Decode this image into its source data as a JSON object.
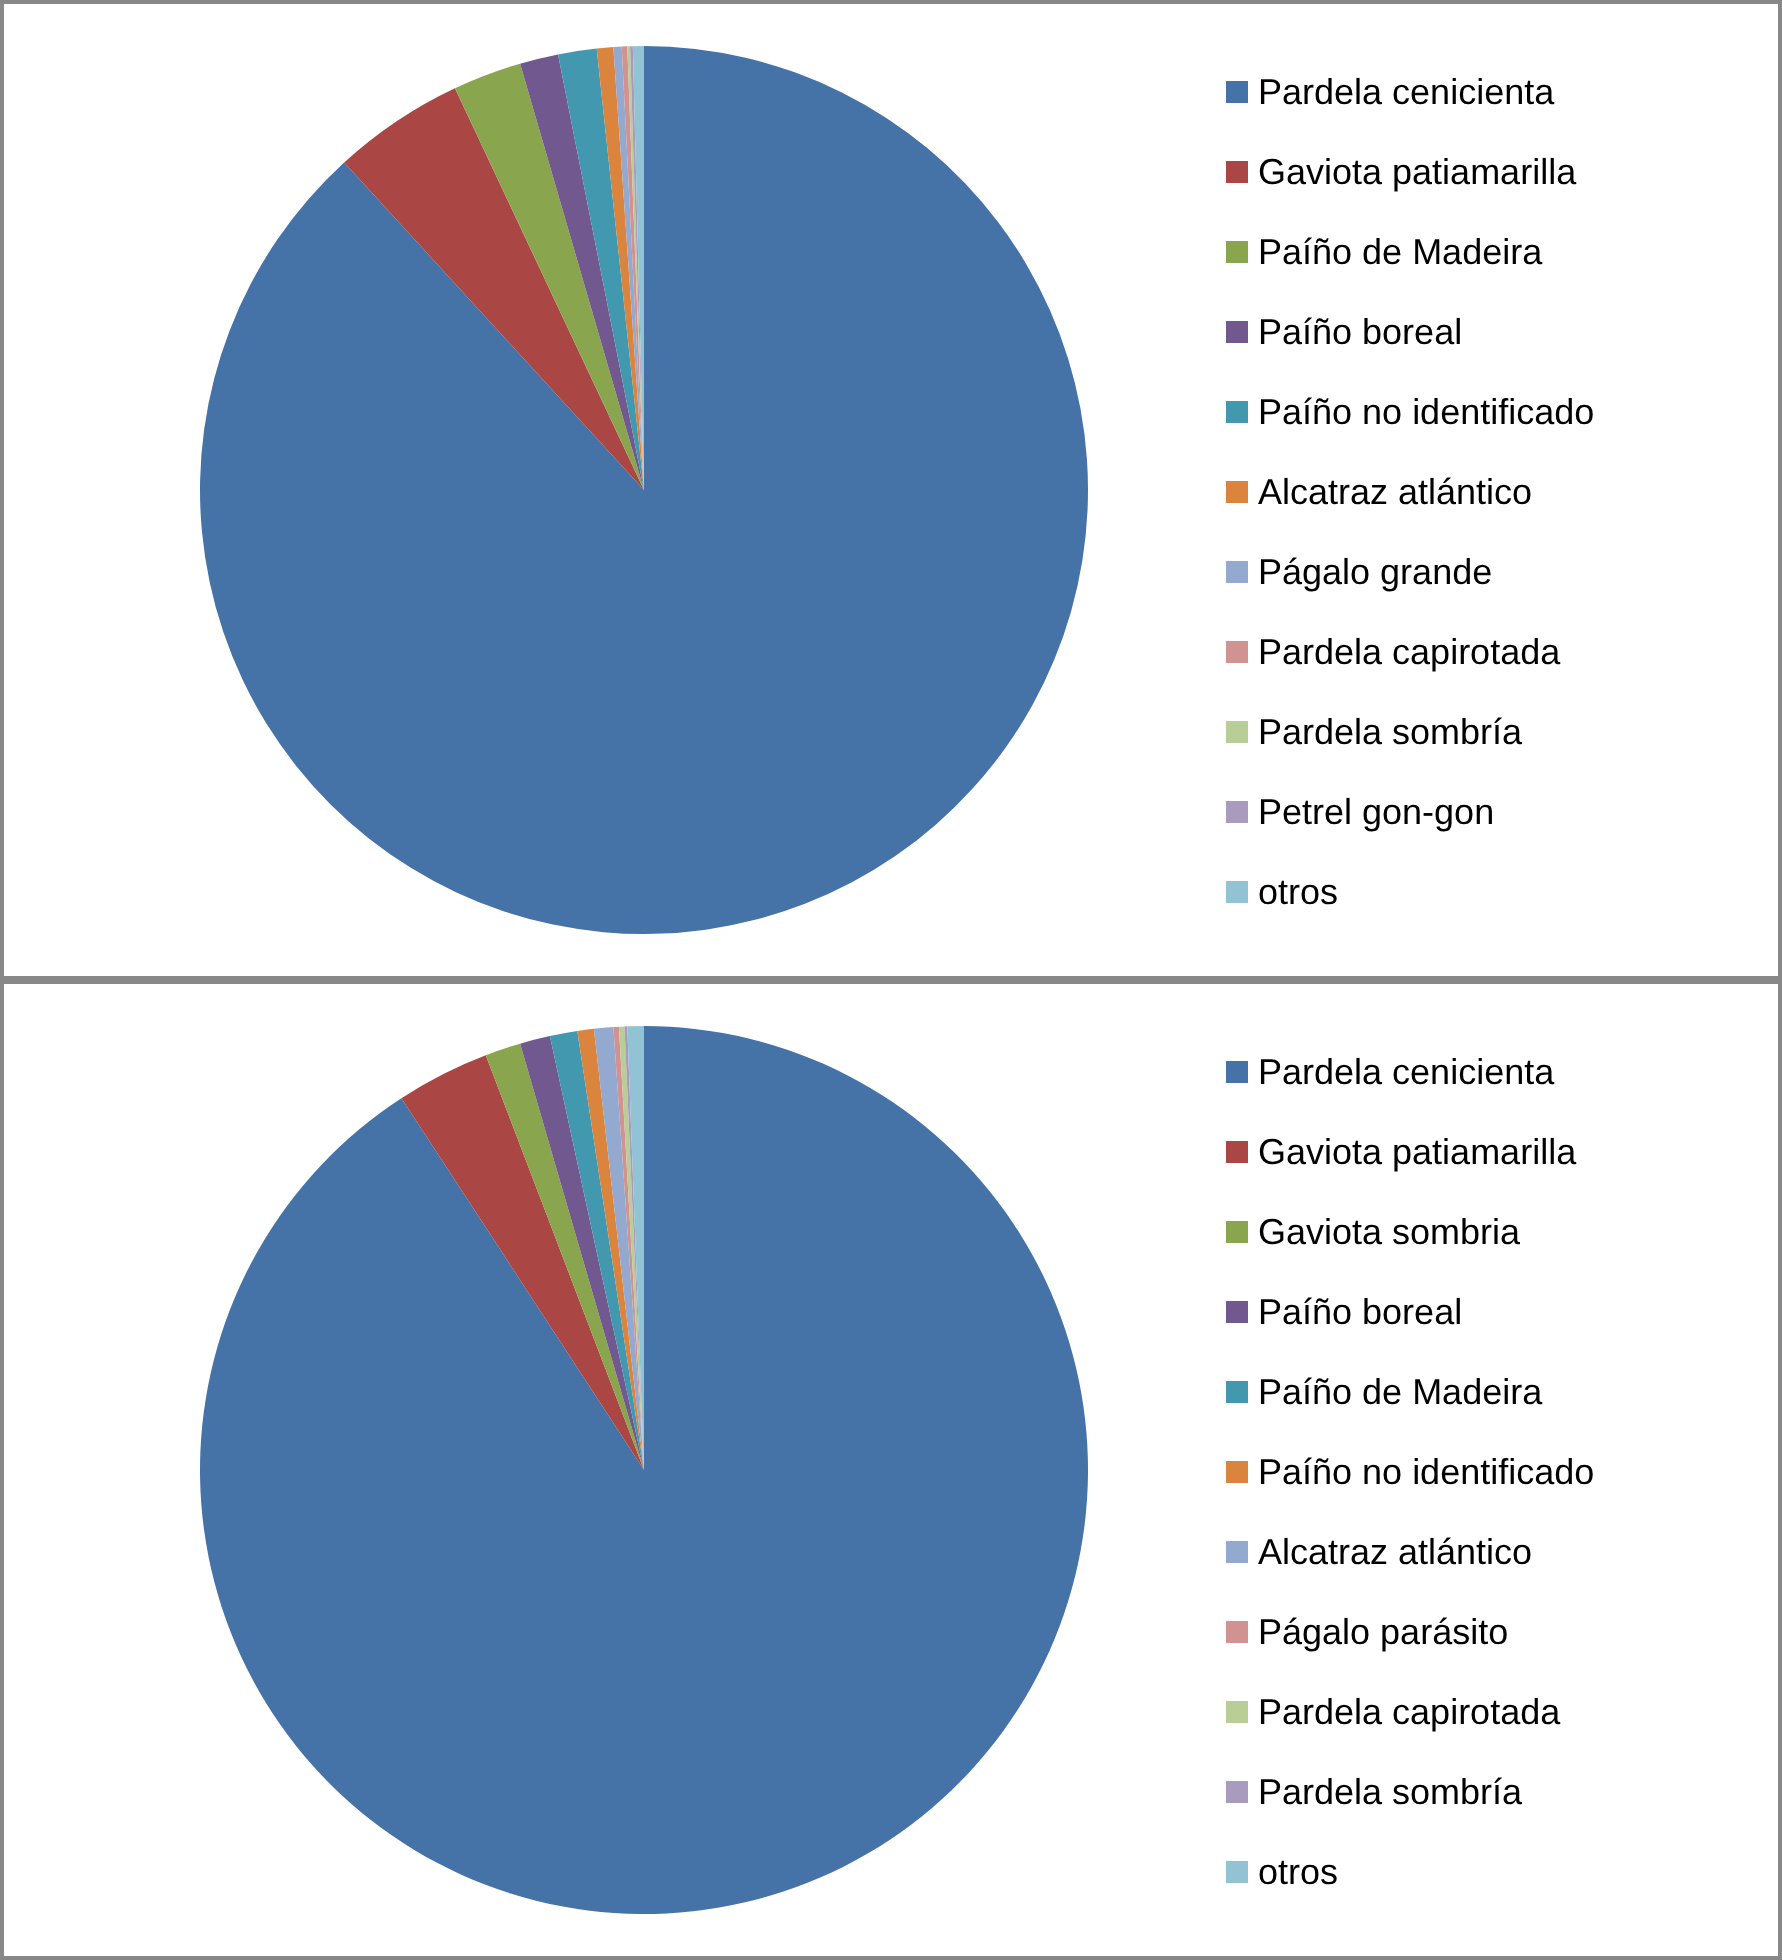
{
  "chart_data": [
    {
      "type": "pie",
      "categories": [
        "Pardela cenicienta",
        "Gaviota patiamarilla",
        "Paíño de Madeira",
        "Paíño boreal",
        "Paíño no identificado",
        "Alcatraz atlántico",
        "Págalo grande",
        "Pardela capirotada",
        "Pardela sombría",
        "Petrel gon-gon",
        "otros"
      ],
      "values": [
        88.2,
        4.8,
        2.5,
        1.4,
        1.4,
        0.6,
        0.3,
        0.2,
        0.1,
        0.1,
        0.4
      ],
      "colors": [
        "#4572a7",
        "#aa4643",
        "#89a54e",
        "#71588f",
        "#4198af",
        "#db843d",
        "#93a9cf",
        "#d19392",
        "#b9cd96",
        "#a99bbd",
        "#92c3d5"
      ],
      "legend": "right"
    },
    {
      "type": "pie",
      "categories": [
        "Pardela cenicienta",
        "Gaviota patiamarilla",
        "Gaviota sombria",
        "Paíño boreal",
        "Paíño de Madeira",
        "Paíño no identificado",
        "Alcatraz atlántico",
        "Págalo parásito",
        "Pardela capirotada",
        "Pardela sombría",
        "otros"
      ],
      "values": [
        90.8,
        3.4,
        1.3,
        1.1,
        1.0,
        0.6,
        0.7,
        0.2,
        0.2,
        0.1,
        0.6
      ],
      "colors": [
        "#4572a7",
        "#aa4643",
        "#89a54e",
        "#71588f",
        "#4198af",
        "#db843d",
        "#93a9cf",
        "#d19392",
        "#b9cd96",
        "#a99bbd",
        "#92c3d5"
      ],
      "legend": "right"
    }
  ]
}
